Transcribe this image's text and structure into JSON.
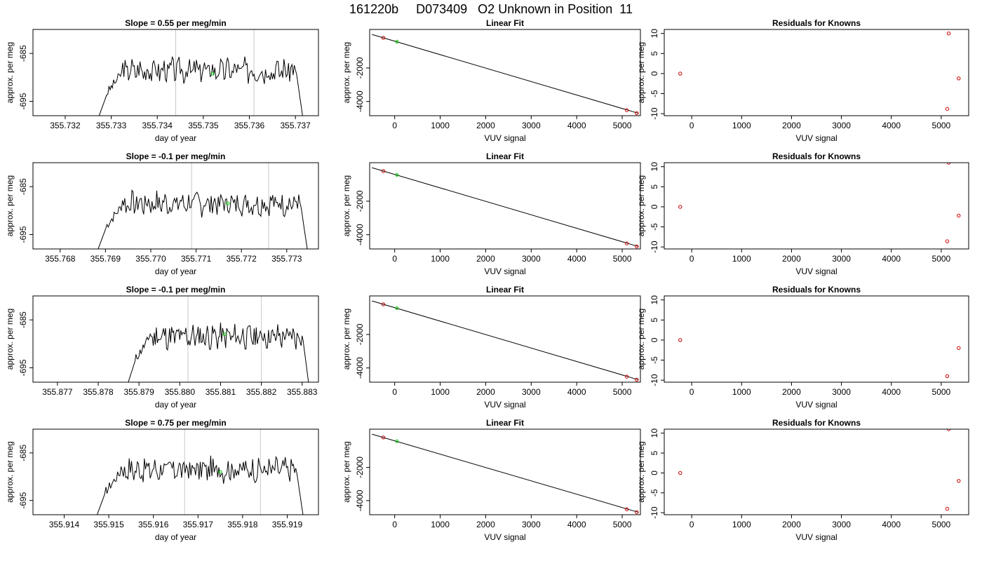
{
  "figure": {
    "title": "161220b     D073409   O2 Unknown in Position  11",
    "colors": {
      "trace": "#000000",
      "marker_green": "#00cc00",
      "marker_red": "#cc0000",
      "vline": "#c8c8c8"
    }
  },
  "chart_data": [
    {
      "type": "line",
      "row": 0,
      "col": 0,
      "title": "Slope =  0.55  per meg/min",
      "xlabel": "day of year",
      "ylabel": "approx. per meg",
      "xlim": [
        355.7313,
        355.7375
      ],
      "ylim": [
        -698,
        -680
      ],
      "xticks": [
        "355.732",
        "355.733",
        "355.734",
        "355.735",
        "355.736",
        "355.737"
      ],
      "yticks": [
        "-685",
        "-695"
      ],
      "trace_start": 355.7327,
      "trace_end": 355.7372,
      "vlines": [
        355.7344,
        355.7361
      ],
      "marker": [
        355.7352,
        -689.2
      ],
      "seed": 3
    },
    {
      "type": "scatter",
      "row": 0,
      "col": 1,
      "title": "Linear Fit",
      "xlabel": "VUV signal",
      "ylabel": "approx. per meg",
      "xlim": [
        -550,
        5400
      ],
      "ylim": [
        -4850,
        300
      ],
      "xticks": [
        "0",
        "1000",
        "2000",
        "3000",
        "4000",
        "5000"
      ],
      "yticks": [
        "-2000",
        "-4000"
      ],
      "fit_line": [
        [
          -500,
          0
        ],
        [
          5350,
          -4700
        ]
      ],
      "known_points": [
        [
          -250,
          -200
        ],
        [
          5100,
          -4520
        ],
        [
          5320,
          -4700
        ]
      ],
      "unknown_point": [
        50,
        -430
      ]
    },
    {
      "type": "scatter",
      "row": 0,
      "col": 2,
      "title": "Residuals for Knowns",
      "xlabel": "VUV signal",
      "ylabel": "approx. per meg",
      "xlim": [
        -550,
        5550
      ],
      "ylim": [
        -10.5,
        11
      ],
      "xticks": [
        "0",
        "1000",
        "2000",
        "3000",
        "4000",
        "5000"
      ],
      "yticks": [
        "-10",
        "-5",
        "0",
        "5",
        "10"
      ],
      "points": [
        [
          -230,
          0
        ],
        [
          5150,
          10
        ],
        [
          5350,
          -1.2
        ],
        [
          5120,
          -8.8
        ]
      ]
    },
    {
      "type": "line",
      "row": 1,
      "col": 0,
      "title": "Slope =  -0.1  per meg/min",
      "xlabel": "day of year",
      "ylabel": "approx. per meg",
      "xlim": [
        355.7674,
        355.7737
      ],
      "ylim": [
        -698,
        -680
      ],
      "xticks": [
        "355.768",
        "355.769",
        "355.770",
        "355.771",
        "355.772",
        "355.773"
      ],
      "yticks": [
        "-685",
        "-695"
      ],
      "trace_start": 355.7688,
      "trace_end": 355.7735,
      "vlines": [
        355.7709,
        355.7726
      ],
      "marker": [
        355.7717,
        -688.5
      ],
      "seed": 7
    },
    {
      "type": "scatter",
      "row": 1,
      "col": 1,
      "title": "Linear Fit",
      "xlabel": "VUV signal",
      "ylabel": "approx. per meg",
      "xlim": [
        -550,
        5400
      ],
      "ylim": [
        -4850,
        300
      ],
      "xticks": [
        "0",
        "1000",
        "2000",
        "3000",
        "4000",
        "5000"
      ],
      "yticks": [
        "-2000",
        "-4000"
      ],
      "fit_line": [
        [
          -500,
          0
        ],
        [
          5350,
          -4700
        ]
      ],
      "known_points": [
        [
          -250,
          -200
        ],
        [
          5100,
          -4520
        ],
        [
          5320,
          -4700
        ]
      ],
      "unknown_point": [
        50,
        -430
      ]
    },
    {
      "type": "scatter",
      "row": 1,
      "col": 2,
      "title": "Residuals for Knowns",
      "xlabel": "VUV signal",
      "ylabel": "approx. per meg",
      "xlim": [
        -550,
        5550
      ],
      "ylim": [
        -10.5,
        11
      ],
      "xticks": [
        "0",
        "1000",
        "2000",
        "3000",
        "4000",
        "5000"
      ],
      "yticks": [
        "-10",
        "-5",
        "0",
        "5",
        "10"
      ],
      "points": [
        [
          -230,
          0
        ],
        [
          5150,
          11
        ],
        [
          5350,
          -2.2
        ],
        [
          5120,
          -8.6
        ]
      ]
    },
    {
      "type": "line",
      "row": 2,
      "col": 0,
      "title": "Slope =  -0.1  per meg/min",
      "xlabel": "day of year",
      "ylabel": "approx. per meg",
      "xlim": [
        355.8764,
        355.8834
      ],
      "ylim": [
        -698,
        -680
      ],
      "xticks": [
        "355.877",
        "355.878",
        "355.879",
        "355.880",
        "355.881",
        "355.882",
        "355.883"
      ],
      "yticks": [
        "-685",
        "-695"
      ],
      "trace_start": 355.8787,
      "trace_end": 355.8832,
      "vlines": [
        355.8802,
        355.882
      ],
      "marker": [
        355.8811,
        -688.0
      ],
      "seed": 11
    },
    {
      "type": "scatter",
      "row": 2,
      "col": 1,
      "title": "Linear Fit",
      "xlabel": "VUV signal",
      "ylabel": "approx. per meg",
      "xlim": [
        -550,
        5400
      ],
      "ylim": [
        -4850,
        300
      ],
      "xticks": [
        "0",
        "1000",
        "2000",
        "3000",
        "4000",
        "5000"
      ],
      "yticks": [
        "-2000",
        "-4000"
      ],
      "fit_line": [
        [
          -500,
          0
        ],
        [
          5350,
          -4700
        ]
      ],
      "known_points": [
        [
          -250,
          -200
        ],
        [
          5100,
          -4520
        ],
        [
          5320,
          -4700
        ]
      ],
      "unknown_point": [
        50,
        -430
      ]
    },
    {
      "type": "scatter",
      "row": 2,
      "col": 2,
      "title": "Residuals for Knowns",
      "xlabel": "VUV signal",
      "ylabel": "approx. per meg",
      "xlim": [
        -550,
        5550
      ],
      "ylim": [
        -10.5,
        11
      ],
      "xticks": [
        "0",
        "1000",
        "2000",
        "3000",
        "4000",
        "5000"
      ],
      "yticks": [
        "-10",
        "-5",
        "0",
        "5",
        "10"
      ],
      "points": [
        [
          -230,
          0
        ],
        [
          5350,
          -2.0
        ],
        [
          5120,
          -9.0
        ]
      ]
    },
    {
      "type": "line",
      "row": 3,
      "col": 0,
      "title": "Slope =  0.75  per meg/min",
      "xlabel": "day of year",
      "ylabel": "approx. per meg",
      "xlim": [
        355.9133,
        355.9197
      ],
      "ylim": [
        -698,
        -680
      ],
      "xticks": [
        "355.914",
        "355.915",
        "355.916",
        "355.917",
        "355.918",
        "355.919"
      ],
      "yticks": [
        "-685",
        "-695"
      ],
      "trace_start": 355.9147,
      "trace_end": 355.9194,
      "vlines": [
        355.9167,
        355.9184
      ],
      "marker": [
        355.9175,
        -689.0
      ],
      "seed": 17
    },
    {
      "type": "scatter",
      "row": 3,
      "col": 1,
      "title": "Linear Fit",
      "xlabel": "VUV signal",
      "ylabel": "approx. per meg",
      "xlim": [
        -550,
        5400
      ],
      "ylim": [
        -4850,
        300
      ],
      "xticks": [
        "0",
        "1000",
        "2000",
        "3000",
        "4000",
        "5000"
      ],
      "yticks": [
        "-2000",
        "-4000"
      ],
      "fit_line": [
        [
          -500,
          0
        ],
        [
          5350,
          -4700
        ]
      ],
      "known_points": [
        [
          -250,
          -200
        ],
        [
          5100,
          -4520
        ],
        [
          5320,
          -4700
        ]
      ],
      "unknown_point": [
        50,
        -430
      ]
    },
    {
      "type": "scatter",
      "row": 3,
      "col": 2,
      "title": "Residuals for Knowns",
      "xlabel": "VUV signal",
      "ylabel": "approx. per meg",
      "xlim": [
        -550,
        5550
      ],
      "ylim": [
        -10.5,
        11
      ],
      "xticks": [
        "0",
        "1000",
        "2000",
        "3000",
        "4000",
        "5000"
      ],
      "yticks": [
        "-10",
        "-5",
        "0",
        "5",
        "10"
      ],
      "points": [
        [
          -230,
          0
        ],
        [
          5150,
          11
        ],
        [
          5350,
          -2.0
        ],
        [
          5120,
          -9.0
        ]
      ]
    }
  ]
}
